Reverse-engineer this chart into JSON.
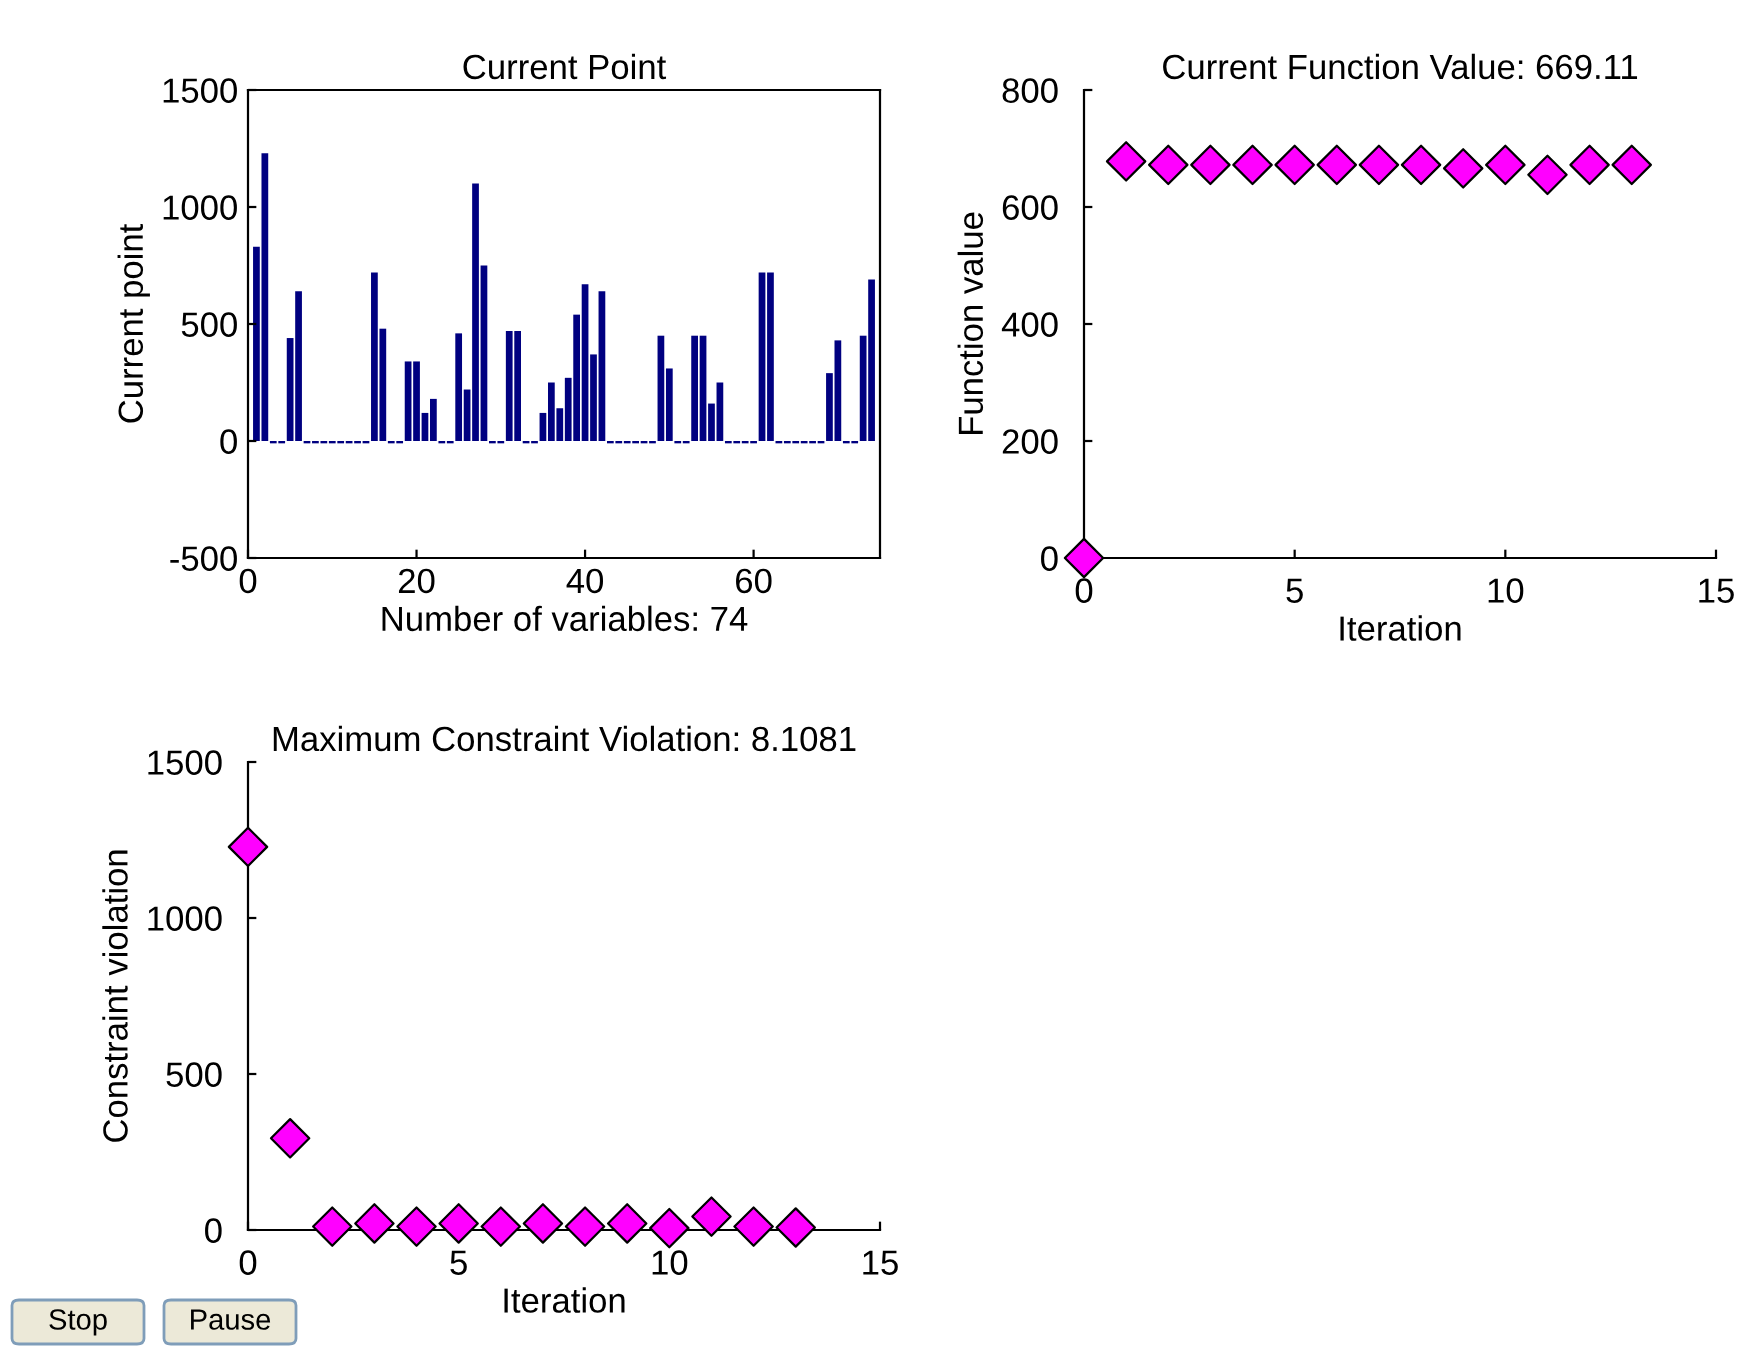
{
  "chart_data": [
    {
      "type": "bar",
      "title": "Current Point",
      "xlabel": "Number of variables: 74",
      "ylabel": "Current point",
      "x": [
        1,
        2,
        3,
        4,
        5,
        6,
        7,
        8,
        9,
        10,
        11,
        12,
        13,
        14,
        15,
        16,
        17,
        18,
        19,
        20,
        21,
        22,
        23,
        24,
        25,
        26,
        27,
        28,
        29,
        30,
        31,
        32,
        33,
        34,
        35,
        36,
        37,
        38,
        39,
        40,
        41,
        42,
        43,
        44,
        45,
        46,
        47,
        48,
        49,
        50,
        51,
        52,
        53,
        54,
        55,
        56,
        57,
        58,
        59,
        60,
        61,
        62,
        63,
        64,
        65,
        66,
        67,
        68,
        69,
        70,
        71,
        72,
        73,
        74
      ],
      "values": [
        830,
        1230,
        -10,
        -10,
        440,
        640,
        -10,
        -10,
        -10,
        -10,
        -10,
        -10,
        -10,
        -10,
        720,
        480,
        -10,
        -10,
        340,
        340,
        120,
        180,
        -10,
        -10,
        460,
        220,
        1100,
        750,
        -10,
        -10,
        470,
        470,
        -10,
        -10,
        120,
        250,
        140,
        270,
        540,
        670,
        370,
        640,
        -10,
        -10,
        -10,
        -10,
        -10,
        -10,
        450,
        310,
        -10,
        -10,
        450,
        450,
        160,
        250,
        -10,
        -10,
        -10,
        -10,
        720,
        720,
        -10,
        -10,
        -10,
        -10,
        -10,
        -10,
        290,
        430,
        -10,
        -10,
        450,
        690
      ],
      "color": "#000080",
      "xlim": [
        0,
        75
      ],
      "xticks": [
        0,
        20,
        40,
        60
      ],
      "ylim": [
        -500,
        1500
      ],
      "yticks": [
        -500,
        0,
        500,
        1000,
        1500
      ],
      "grid": false
    },
    {
      "type": "scatter",
      "title": "Current Function Value: 669.11",
      "xlabel": "Iteration",
      "ylabel": "Function value",
      "x": [
        0,
        1,
        2,
        3,
        4,
        5,
        6,
        7,
        8,
        9,
        10,
        11,
        12,
        13
      ],
      "values": [
        0,
        678,
        672,
        672,
        672,
        672,
        672,
        672,
        672,
        666,
        672,
        655,
        672,
        672
      ],
      "color": "#ff00ff",
      "marker": "diamond",
      "xlim": [
        0,
        15
      ],
      "xticks": [
        0,
        5,
        10,
        15
      ],
      "ylim": [
        0,
        800
      ],
      "yticks": [
        0,
        200,
        400,
        600,
        800
      ],
      "grid": false
    },
    {
      "type": "scatter",
      "title": "Maximum Constraint Violation: 8.1081",
      "xlabel": "Iteration",
      "ylabel": "Constraint violation",
      "x": [
        0,
        1,
        2,
        3,
        4,
        5,
        6,
        7,
        8,
        9,
        10,
        11,
        12,
        13
      ],
      "values": [
        1228,
        294,
        11,
        21,
        11,
        21,
        11,
        21,
        11,
        21,
        6,
        43,
        11,
        8
      ],
      "color": "#ff00ff",
      "marker": "diamond",
      "xlim": [
        0,
        15
      ],
      "xticks": [
        0,
        5,
        10,
        15
      ],
      "ylim": [
        0,
        1500
      ],
      "yticks": [
        0,
        500,
        1000,
        1500
      ],
      "grid": false,
      "annotations": [
        "Stop",
        "Pause"
      ]
    }
  ]
}
